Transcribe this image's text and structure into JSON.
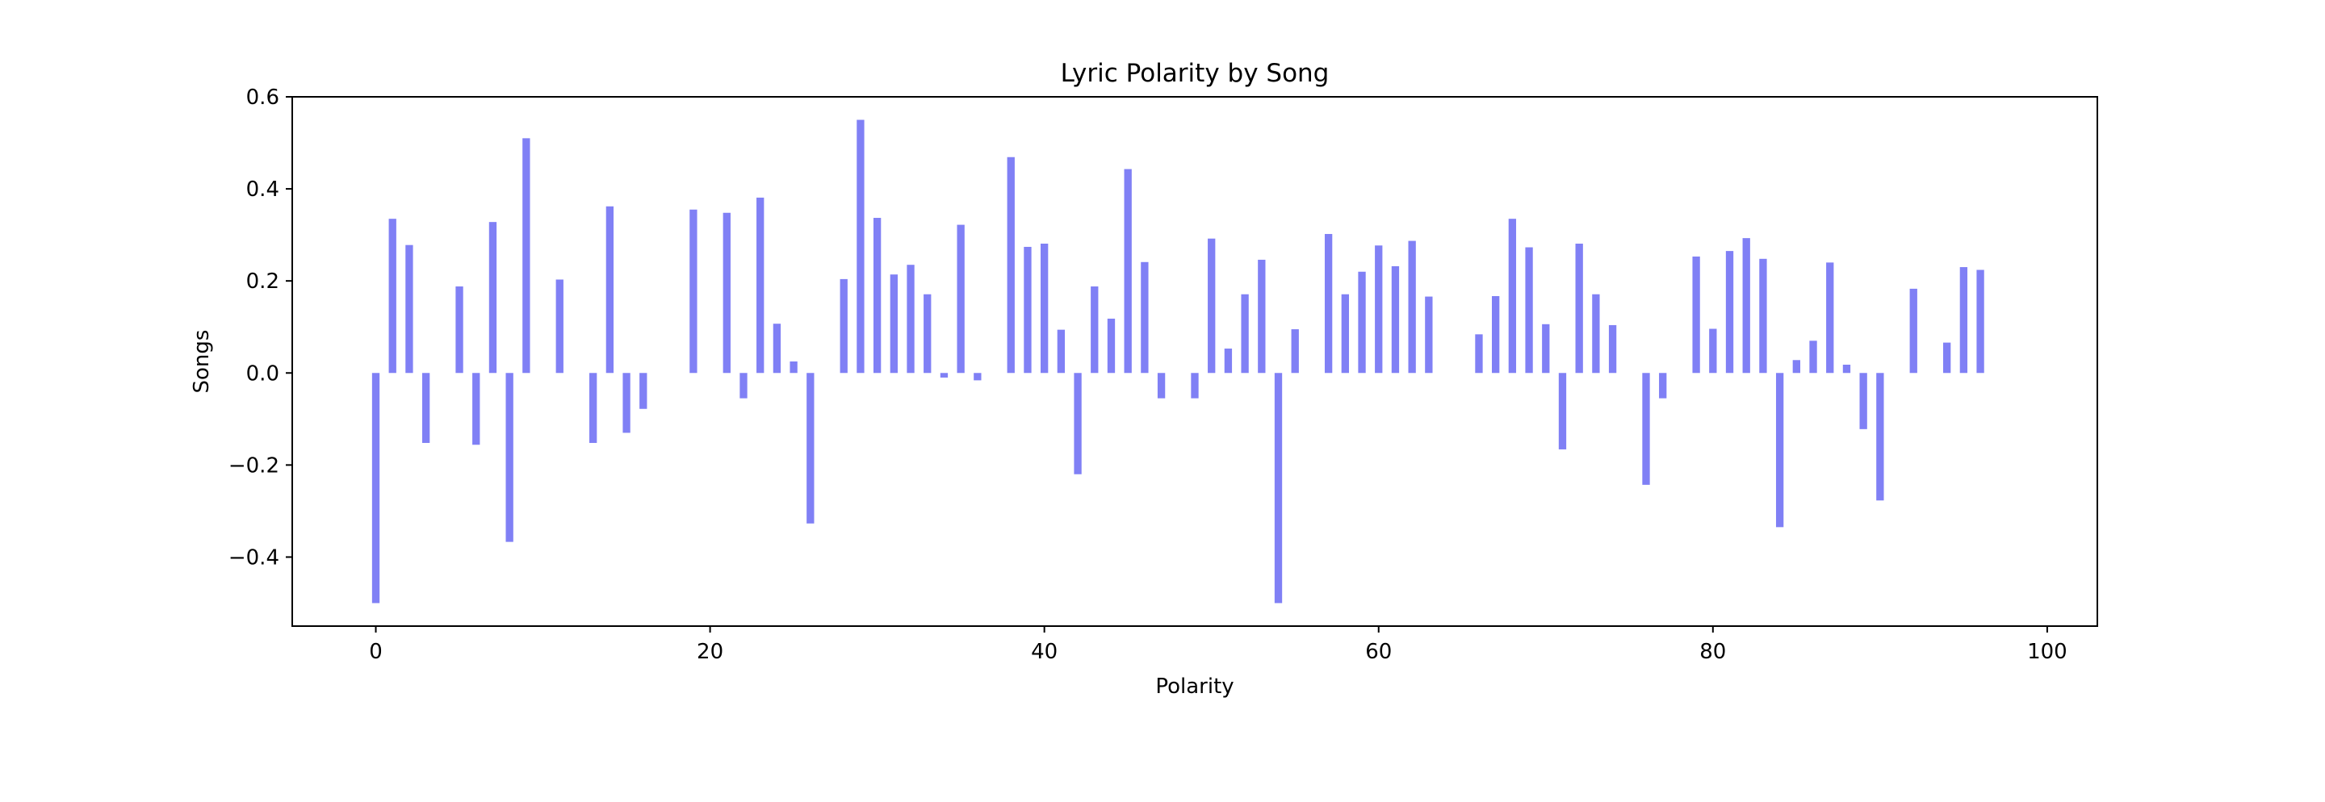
{
  "chart_data": {
    "type": "bar",
    "title": "Lyric Polarity by Song",
    "xlabel": "Polarity",
    "ylabel": "Songs",
    "xlim": [
      -5,
      103
    ],
    "ylim": [
      -0.55,
      0.6
    ],
    "xticks": [
      0,
      20,
      40,
      60,
      80,
      100
    ],
    "yticks": [
      -0.4,
      -0.2,
      0.0,
      0.2,
      0.4,
      0.6
    ],
    "ytick_labels": [
      "−0.4",
      "−0.2",
      "0.0",
      "0.2",
      "0.4",
      "0.6"
    ],
    "grid": false,
    "bar_color": "#8080f5",
    "bars": [
      {
        "x": 0,
        "y": -0.5
      },
      {
        "x": 1,
        "y": 0.335
      },
      {
        "x": 2,
        "y": 0.278
      },
      {
        "x": 3,
        "y": -0.152
      },
      {
        "x": 5,
        "y": 0.188
      },
      {
        "x": 6,
        "y": -0.156
      },
      {
        "x": 7,
        "y": 0.328
      },
      {
        "x": 8,
        "y": -0.367
      },
      {
        "x": 9,
        "y": 0.51
      },
      {
        "x": 11,
        "y": 0.203
      },
      {
        "x": 13,
        "y": -0.152
      },
      {
        "x": 14,
        "y": 0.362
      },
      {
        "x": 15,
        "y": -0.13
      },
      {
        "x": 16,
        "y": -0.078
      },
      {
        "x": 19,
        "y": 0.355
      },
      {
        "x": 21,
        "y": 0.348
      },
      {
        "x": 22,
        "y": -0.055
      },
      {
        "x": 23,
        "y": 0.381
      },
      {
        "x": 24,
        "y": 0.107
      },
      {
        "x": 25,
        "y": 0.025
      },
      {
        "x": 26,
        "y": -0.327
      },
      {
        "x": 28,
        "y": 0.204
      },
      {
        "x": 29,
        "y": 0.55
      },
      {
        "x": 30,
        "y": 0.337
      },
      {
        "x": 31,
        "y": 0.214
      },
      {
        "x": 32,
        "y": 0.235
      },
      {
        "x": 33,
        "y": 0.171
      },
      {
        "x": 34,
        "y": -0.01
      },
      {
        "x": 35,
        "y": 0.322
      },
      {
        "x": 36,
        "y": -0.016
      },
      {
        "x": 38,
        "y": 0.469
      },
      {
        "x": 39,
        "y": 0.274
      },
      {
        "x": 40,
        "y": 0.281
      },
      {
        "x": 41,
        "y": 0.094
      },
      {
        "x": 42,
        "y": -0.22
      },
      {
        "x": 43,
        "y": 0.188
      },
      {
        "x": 44,
        "y": 0.118
      },
      {
        "x": 45,
        "y": 0.443
      },
      {
        "x": 46,
        "y": 0.241
      },
      {
        "x": 47,
        "y": -0.055
      },
      {
        "x": 49,
        "y": -0.055
      },
      {
        "x": 50,
        "y": 0.292
      },
      {
        "x": 51,
        "y": 0.053
      },
      {
        "x": 52,
        "y": 0.171
      },
      {
        "x": 53,
        "y": 0.246
      },
      {
        "x": 54,
        "y": -0.5
      },
      {
        "x": 55,
        "y": 0.095
      },
      {
        "x": 57,
        "y": 0.302
      },
      {
        "x": 58,
        "y": 0.171
      },
      {
        "x": 59,
        "y": 0.22
      },
      {
        "x": 60,
        "y": 0.277
      },
      {
        "x": 61,
        "y": 0.232
      },
      {
        "x": 62,
        "y": 0.287
      },
      {
        "x": 63,
        "y": 0.166
      },
      {
        "x": 66,
        "y": 0.084
      },
      {
        "x": 67,
        "y": 0.167
      },
      {
        "x": 68,
        "y": 0.335
      },
      {
        "x": 69,
        "y": 0.273
      },
      {
        "x": 70,
        "y": 0.106
      },
      {
        "x": 71,
        "y": -0.166
      },
      {
        "x": 72,
        "y": 0.281
      },
      {
        "x": 73,
        "y": 0.171
      },
      {
        "x": 74,
        "y": 0.104
      },
      {
        "x": 76,
        "y": -0.243
      },
      {
        "x": 77,
        "y": -0.055
      },
      {
        "x": 79,
        "y": 0.253
      },
      {
        "x": 80,
        "y": 0.096
      },
      {
        "x": 81,
        "y": 0.265
      },
      {
        "x": 82,
        "y": 0.293
      },
      {
        "x": 83,
        "y": 0.248
      },
      {
        "x": 84,
        "y": -0.335
      },
      {
        "x": 85,
        "y": 0.028
      },
      {
        "x": 86,
        "y": 0.07
      },
      {
        "x": 87,
        "y": 0.24
      },
      {
        "x": 88,
        "y": 0.018
      },
      {
        "x": 89,
        "y": -0.122
      },
      {
        "x": 90,
        "y": -0.277
      },
      {
        "x": 92,
        "y": 0.183
      },
      {
        "x": 94,
        "y": 0.066
      },
      {
        "x": 95,
        "y": 0.23
      },
      {
        "x": 96,
        "y": 0.224
      }
    ]
  }
}
